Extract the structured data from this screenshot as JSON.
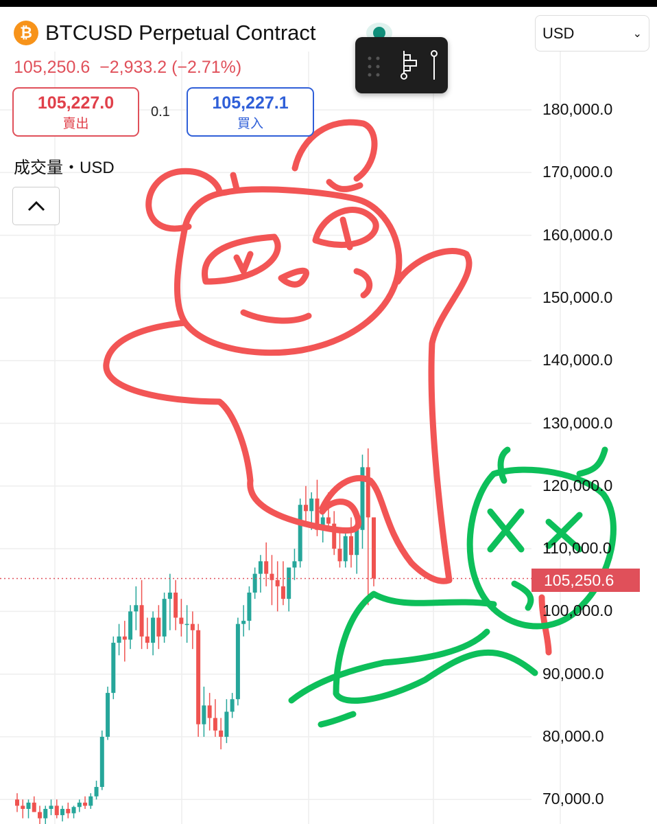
{
  "header": {
    "symbol_icon": "bitcoin-icon",
    "title": "BTCUSD Perpetual Contract",
    "last_price": "105,250.6",
    "change": "−2,933.2 (−2.71%)"
  },
  "quotes": {
    "sell_price": "105,227.0",
    "sell_label": "賣出",
    "spread": "0.1",
    "buy_price": "105,227.1",
    "buy_label": "買入"
  },
  "volume_label": "成交量・USD",
  "currency_select": {
    "value": "USD"
  },
  "toolbar": {
    "icons": [
      "drag-handle-icon",
      "fibonacci-tool-icon",
      "line-tool-icon"
    ]
  },
  "colors": {
    "up": "#26a69a",
    "down": "#ef5350",
    "price_line": "#e0505a",
    "drawing_red": "#f25555",
    "drawing_green": "#0dbf5a"
  },
  "chart_data": {
    "type": "candlestick",
    "y_ticks": [
      "180,000.0",
      "170,000.0",
      "160,000.0",
      "150,000.0",
      "140,000.0",
      "130,000.0",
      "120,000.0",
      "110,000.0",
      "100,000.0",
      "90,000.0",
      "80,000.0",
      "70,000.0"
    ],
    "ylim": [
      70000,
      180000
    ],
    "last_price_label": "105,250.6",
    "last_price": 105250.6,
    "ohlc_thousands": [
      [
        70,
        71,
        68,
        69
      ],
      [
        69,
        70,
        67,
        68.5
      ],
      [
        68.5,
        70,
        67,
        69.5
      ],
      [
        69.5,
        70.5,
        68,
        68
      ],
      [
        68,
        69,
        66,
        67
      ],
      [
        67,
        69,
        66,
        68.5
      ],
      [
        68.5,
        70,
        67.5,
        69
      ],
      [
        69,
        70,
        67,
        67.5
      ],
      [
        67.5,
        69,
        66.5,
        68.5
      ],
      [
        68.5,
        69.5,
        67,
        67.8
      ],
      [
        67.8,
        69,
        67,
        68.8
      ],
      [
        68.8,
        70,
        68,
        69.5
      ],
      [
        69.5,
        70.5,
        68.5,
        69
      ],
      [
        69,
        71,
        68.5,
        70.5
      ],
      [
        70.5,
        73,
        70,
        72
      ],
      [
        72,
        81,
        71.5,
        80
      ],
      [
        80,
        88,
        79.5,
        87
      ],
      [
        87,
        96,
        86,
        95
      ],
      [
        95,
        98,
        93,
        96
      ],
      [
        96,
        98.5,
        92,
        95.5
      ],
      [
        95.5,
        101,
        94,
        100
      ],
      [
        100,
        104,
        97,
        101
      ],
      [
        101,
        105,
        94,
        96
      ],
      [
        96,
        99,
        94,
        95
      ],
      [
        95,
        100,
        93,
        99
      ],
      [
        99,
        101,
        94,
        96
      ],
      [
        96,
        103,
        95,
        102
      ],
      [
        102,
        106,
        97,
        103
      ],
      [
        103,
        105,
        97,
        99
      ],
      [
        99,
        102,
        96,
        98
      ],
      [
        98,
        101,
        95,
        98
      ],
      [
        98,
        100,
        94,
        97
      ],
      [
        97,
        98,
        80,
        82
      ],
      [
        82,
        88,
        80,
        85
      ],
      [
        85,
        87,
        81,
        83
      ],
      [
        83,
        86,
        80,
        81
      ],
      [
        81,
        83,
        78,
        80
      ],
      [
        80,
        86,
        79,
        84
      ],
      [
        84,
        87,
        83,
        86
      ],
      [
        86,
        99,
        85,
        98
      ],
      [
        98,
        101,
        96,
        98.5
      ],
      [
        98.5,
        104,
        97,
        103
      ],
      [
        103,
        107,
        102,
        106
      ],
      [
        106,
        109,
        103,
        108
      ],
      [
        108,
        111,
        104,
        106
      ],
      [
        106,
        109,
        101,
        105
      ],
      [
        105,
        108,
        100,
        104
      ],
      [
        104,
        108,
        101,
        102
      ],
      [
        102,
        107,
        100,
        107
      ],
      [
        107,
        110,
        105,
        108
      ],
      [
        108,
        118,
        107,
        117
      ],
      [
        117,
        120,
        114,
        116
      ],
      [
        116,
        119,
        113,
        118
      ],
      [
        118,
        121,
        112,
        113
      ],
      [
        113,
        117,
        111,
        115
      ],
      [
        115,
        119,
        113,
        114
      ],
      [
        114,
        116,
        109,
        110
      ],
      [
        110,
        113,
        107,
        108
      ],
      [
        108,
        113,
        107,
        112
      ],
      [
        112,
        115,
        107,
        109
      ],
      [
        109,
        114,
        106,
        113
      ],
      [
        113,
        125,
        110,
        123
      ],
      [
        123,
        126,
        101,
        115
      ],
      [
        115,
        115,
        104,
        105.25
      ]
    ],
    "grid": true
  }
}
